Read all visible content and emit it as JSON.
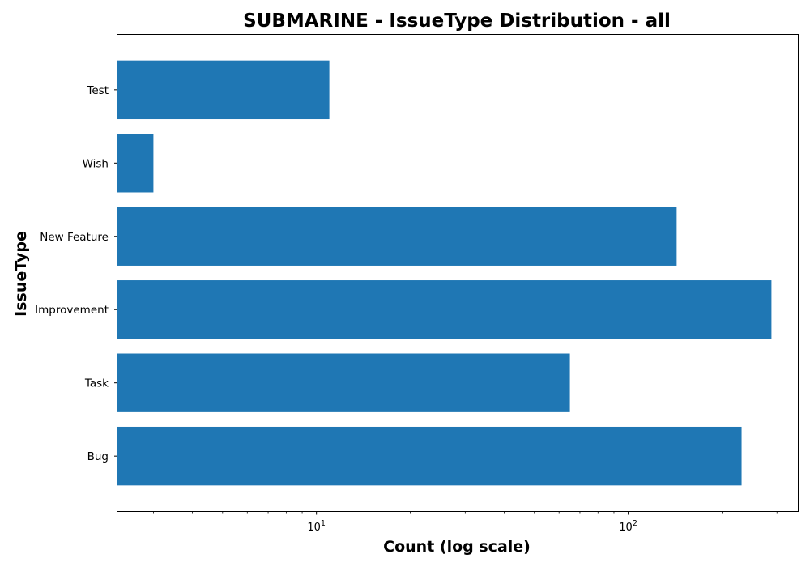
{
  "chart_data": {
    "type": "bar",
    "orientation": "horizontal",
    "title": "SUBMARINE - IssueType Distribution - all",
    "xlabel": "Count (log scale)",
    "ylabel": "IssueType",
    "x_scale": "log",
    "xlim": [
      2.3,
      350
    ],
    "categories": [
      "Bug",
      "Task",
      "Improvement",
      "New Feature",
      "Wish",
      "Test"
    ],
    "values": [
      231,
      65,
      288,
      143,
      3,
      11
    ],
    "x_ticks": [
      {
        "value": 10,
        "base": "10",
        "exp": "1"
      },
      {
        "value": 100,
        "base": "10",
        "exp": "2"
      }
    ],
    "grid": false,
    "bar_color": "#1f77b4"
  }
}
